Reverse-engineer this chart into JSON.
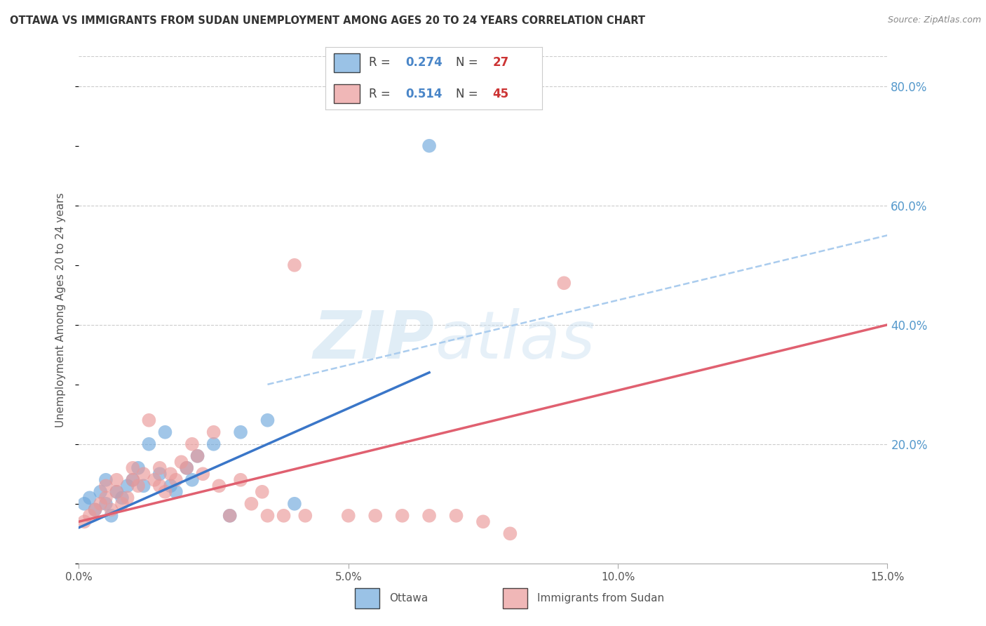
{
  "title": "OTTAWA VS IMMIGRANTS FROM SUDAN UNEMPLOYMENT AMONG AGES 20 TO 24 YEARS CORRELATION CHART",
  "source": "Source: ZipAtlas.com",
  "ylabel": "Unemployment Among Ages 20 to 24 years",
  "xlim": [
    0.0,
    0.15
  ],
  "ylim": [
    0.0,
    0.85
  ],
  "xticks": [
    0.0,
    0.05,
    0.1,
    0.15
  ],
  "xtick_labels": [
    "0.0%",
    "5.0%",
    "10.0%",
    "15.0%"
  ],
  "yticks_right": [
    0.2,
    0.4,
    0.6,
    0.8
  ],
  "ytick_labels_right": [
    "20.0%",
    "40.0%",
    "60.0%",
    "80.0%"
  ],
  "ottawa_color": "#6fa8dc",
  "sudan_color": "#ea9999",
  "ottawa_R": 0.274,
  "ottawa_N": 27,
  "sudan_R": 0.514,
  "sudan_N": 45,
  "watermark": "ZIPatlas",
  "background": "#ffffff",
  "grid_color": "#cccccc",
  "ottawa_x": [
    0.001,
    0.002,
    0.003,
    0.004,
    0.005,
    0.005,
    0.006,
    0.007,
    0.008,
    0.009,
    0.01,
    0.011,
    0.012,
    0.013,
    0.015,
    0.016,
    0.017,
    0.018,
    0.02,
    0.021,
    0.022,
    0.025,
    0.028,
    0.03,
    0.035,
    0.04,
    0.065
  ],
  "ottawa_y": [
    0.1,
    0.11,
    0.09,
    0.12,
    0.1,
    0.14,
    0.08,
    0.12,
    0.11,
    0.13,
    0.14,
    0.16,
    0.13,
    0.2,
    0.15,
    0.22,
    0.13,
    0.12,
    0.16,
    0.14,
    0.18,
    0.2,
    0.08,
    0.22,
    0.24,
    0.1,
    0.7
  ],
  "sudan_x": [
    0.001,
    0.002,
    0.003,
    0.004,
    0.005,
    0.005,
    0.006,
    0.007,
    0.007,
    0.008,
    0.009,
    0.01,
    0.01,
    0.011,
    0.012,
    0.013,
    0.014,
    0.015,
    0.015,
    0.016,
    0.017,
    0.018,
    0.019,
    0.02,
    0.021,
    0.022,
    0.023,
    0.025,
    0.026,
    0.028,
    0.03,
    0.032,
    0.034,
    0.035,
    0.038,
    0.04,
    0.042,
    0.05,
    0.055,
    0.06,
    0.065,
    0.07,
    0.075,
    0.08,
    0.09
  ],
  "sudan_y": [
    0.07,
    0.08,
    0.09,
    0.1,
    0.11,
    0.13,
    0.09,
    0.12,
    0.14,
    0.1,
    0.11,
    0.14,
    0.16,
    0.13,
    0.15,
    0.24,
    0.14,
    0.13,
    0.16,
    0.12,
    0.15,
    0.14,
    0.17,
    0.16,
    0.2,
    0.18,
    0.15,
    0.22,
    0.13,
    0.08,
    0.14,
    0.1,
    0.12,
    0.08,
    0.08,
    0.5,
    0.08,
    0.08,
    0.08,
    0.08,
    0.08,
    0.08,
    0.07,
    0.05,
    0.47
  ],
  "ottawa_line_x": [
    0.0,
    0.065
  ],
  "ottawa_line_y": [
    0.06,
    0.32
  ],
  "sudan_line_x": [
    0.0,
    0.15
  ],
  "sudan_line_y": [
    0.07,
    0.4
  ],
  "dashed_line_x": [
    0.035,
    0.15
  ],
  "dashed_line_y": [
    0.3,
    0.55
  ],
  "legend_R_color": "#4a86c8",
  "legend_N_color": "#cc3333",
  "right_tick_color": "#5599cc",
  "title_color": "#333333",
  "ylabel_color": "#555555",
  "source_color": "#888888",
  "xtick_color": "#555555"
}
